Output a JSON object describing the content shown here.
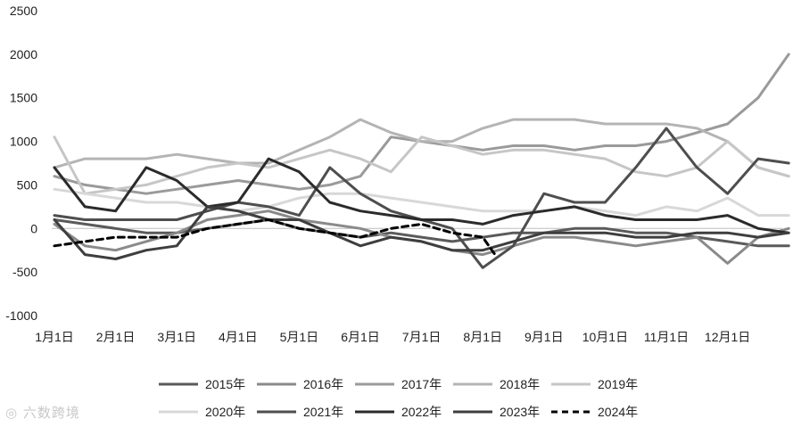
{
  "chart_data": {
    "type": "line",
    "title": "",
    "xlabel": "",
    "ylabel": "",
    "ylim": [
      -1000,
      2500
    ],
    "yticks": [
      -1000,
      -500,
      0,
      500,
      1000,
      1500,
      2000,
      2500
    ],
    "ytick_labels": [
      "-1000",
      "-500",
      "0",
      "500",
      "1000",
      "1500",
      "2000",
      "2500"
    ],
    "xlim": [
      0,
      12
    ],
    "xticks": [
      0,
      1,
      2,
      3,
      4,
      5,
      6,
      7,
      8,
      9,
      10,
      11
    ],
    "xtick_labels": [
      "1月1日",
      "2月1日",
      "3月1日",
      "4月1日",
      "5月1日",
      "6月1日",
      "7月1日",
      "8月1日",
      "9月1日",
      "10月1日",
      "11月1日",
      "12月1日"
    ],
    "grid": false,
    "legend_position": "bottom",
    "series": [
      {
        "name": "2015年",
        "color": "#5a5a5a",
        "dash": false,
        "x": [
          0,
          0.5,
          1,
          1.5,
          2,
          2.5,
          3,
          3.5,
          4,
          4.5,
          5,
          5.5,
          6,
          6.5,
          7,
          7.5,
          8,
          8.5,
          9,
          9.5,
          10,
          10.5,
          11,
          11.5,
          12
        ],
        "y": [
          100,
          50,
          0,
          -50,
          -50,
          0,
          50,
          100,
          0,
          -50,
          -100,
          -50,
          -100,
          -150,
          -100,
          -50,
          -50,
          0,
          0,
          -50,
          -50,
          -100,
          -150,
          -200,
          -200
        ]
      },
      {
        "name": "2016年",
        "color": "#8a8a8a",
        "dash": false,
        "x": [
          0,
          0.5,
          1,
          1.5,
          2,
          2.5,
          3,
          3.5,
          4,
          4.5,
          5,
          5.5,
          6,
          6.5,
          7,
          7.5,
          8,
          8.5,
          9,
          9.5,
          10,
          10.5,
          11,
          11.5,
          12
        ],
        "y": [
          50,
          -200,
          -250,
          -150,
          -50,
          100,
          150,
          200,
          100,
          50,
          0,
          -100,
          -150,
          -250,
          -300,
          -200,
          -100,
          -100,
          -150,
          -200,
          -150,
          -100,
          -400,
          -100,
          0
        ]
      },
      {
        "name": "2017年",
        "color": "#9a9a9a",
        "dash": false,
        "x": [
          0,
          0.5,
          1,
          1.5,
          2,
          2.5,
          3,
          3.5,
          4,
          4.5,
          5,
          5.5,
          6,
          6.5,
          7,
          7.5,
          8,
          8.5,
          9,
          9.5,
          10,
          10.5,
          11,
          11.5,
          12
        ],
        "y": [
          600,
          500,
          450,
          400,
          450,
          500,
          550,
          500,
          450,
          500,
          600,
          1050,
          1000,
          950,
          900,
          950,
          950,
          900,
          950,
          950,
          1000,
          1100,
          1200,
          1500,
          2000
        ]
      },
      {
        "name": "2018年",
        "color": "#b4b4b4",
        "dash": false,
        "x": [
          0,
          0.5,
          1,
          1.5,
          2,
          2.5,
          3,
          3.5,
          4,
          4.5,
          5,
          5.5,
          6,
          6.5,
          7,
          7.5,
          8,
          8.5,
          9,
          9.5,
          10,
          10.5,
          11,
          11.5,
          12
        ],
        "y": [
          700,
          800,
          800,
          800,
          850,
          800,
          750,
          750,
          900,
          1050,
          1250,
          1100,
          1000,
          1000,
          1150,
          1250,
          1250,
          1250,
          1200,
          1200,
          1200,
          1150,
          1000,
          700,
          600
        ]
      },
      {
        "name": "2019年",
        "color": "#c6c6c6",
        "dash": false,
        "x": [
          0,
          0.5,
          1,
          1.5,
          2,
          2.5,
          3,
          3.5,
          4,
          4.5,
          5,
          5.5,
          6,
          6.5,
          7,
          7.5,
          8,
          8.5,
          9,
          9.5,
          10,
          10.5,
          11,
          11.5,
          12
        ],
        "y": [
          1050,
          400,
          450,
          500,
          600,
          700,
          750,
          700,
          800,
          900,
          800,
          650,
          1050,
          950,
          850,
          900,
          900,
          850,
          800,
          650,
          600,
          700,
          1000,
          700,
          600
        ]
      },
      {
        "name": "2020年",
        "color": "#d8d8d8",
        "dash": false,
        "x": [
          0,
          0.5,
          1,
          1.5,
          2,
          2.5,
          3,
          3.5,
          4,
          4.5,
          5,
          5.5,
          6,
          6.5,
          7,
          7.5,
          8,
          8.5,
          9,
          9.5,
          10,
          10.5,
          11,
          11.5,
          12
        ],
        "y": [
          450,
          400,
          350,
          300,
          300,
          250,
          200,
          250,
          350,
          400,
          400,
          350,
          300,
          250,
          200,
          200,
          200,
          250,
          200,
          150,
          250,
          200,
          350,
          150,
          150
        ]
      },
      {
        "name": "2021年",
        "color": "#4e4e4e",
        "dash": false,
        "x": [
          0,
          0.5,
          1,
          1.5,
          2,
          2.5,
          3,
          3.5,
          4,
          4.5,
          5,
          5.5,
          6,
          6.5,
          7,
          7.5,
          8,
          8.5,
          9,
          9.5,
          10,
          10.5,
          11,
          11.5,
          12
        ],
        "y": [
          150,
          100,
          100,
          100,
          100,
          200,
          300,
          250,
          150,
          700,
          400,
          200,
          100,
          0,
          -450,
          -200,
          400,
          300,
          300,
          700,
          1150,
          700,
          400,
          800,
          750
        ]
      },
      {
        "name": "2022年",
        "color": "#2b2b2b",
        "dash": false,
        "x": [
          0,
          0.5,
          1,
          1.5,
          2,
          2.5,
          3,
          3.5,
          4,
          4.5,
          5,
          5.5,
          6,
          6.5,
          7,
          7.5,
          8,
          8.5,
          9,
          9.5,
          10,
          10.5,
          11,
          11.5,
          12
        ],
        "y": [
          700,
          250,
          200,
          700,
          550,
          250,
          300,
          800,
          650,
          300,
          200,
          150,
          100,
          100,
          50,
          150,
          200,
          250,
          150,
          100,
          100,
          100,
          150,
          0,
          -50
        ]
      },
      {
        "name": "2023年",
        "color": "#3e3e3e",
        "dash": false,
        "x": [
          0,
          0.5,
          1,
          1.5,
          2,
          2.5,
          3,
          3.5,
          4,
          4.5,
          5,
          5.5,
          6,
          6.5,
          7,
          7.5,
          8,
          8.5,
          9,
          9.5,
          10,
          10.5,
          11,
          11.5,
          12
        ],
        "y": [
          100,
          -300,
          -350,
          -250,
          -200,
          250,
          200,
          100,
          100,
          -50,
          -200,
          -100,
          -150,
          -250,
          -250,
          -150,
          -50,
          -50,
          -50,
          -100,
          -100,
          -50,
          -50,
          -100,
          -50
        ]
      },
      {
        "name": "2024年",
        "color": "#000000",
        "dash": true,
        "x": [
          0,
          0.5,
          1,
          1.5,
          2,
          2.5,
          3,
          3.5,
          4,
          4.5,
          5,
          5.5,
          6,
          6.5,
          7,
          7.2
        ],
        "y": [
          -200,
          -150,
          -100,
          -100,
          -100,
          0,
          50,
          100,
          0,
          -50,
          -100,
          0,
          50,
          -50,
          -100,
          -300
        ]
      }
    ]
  }
}
